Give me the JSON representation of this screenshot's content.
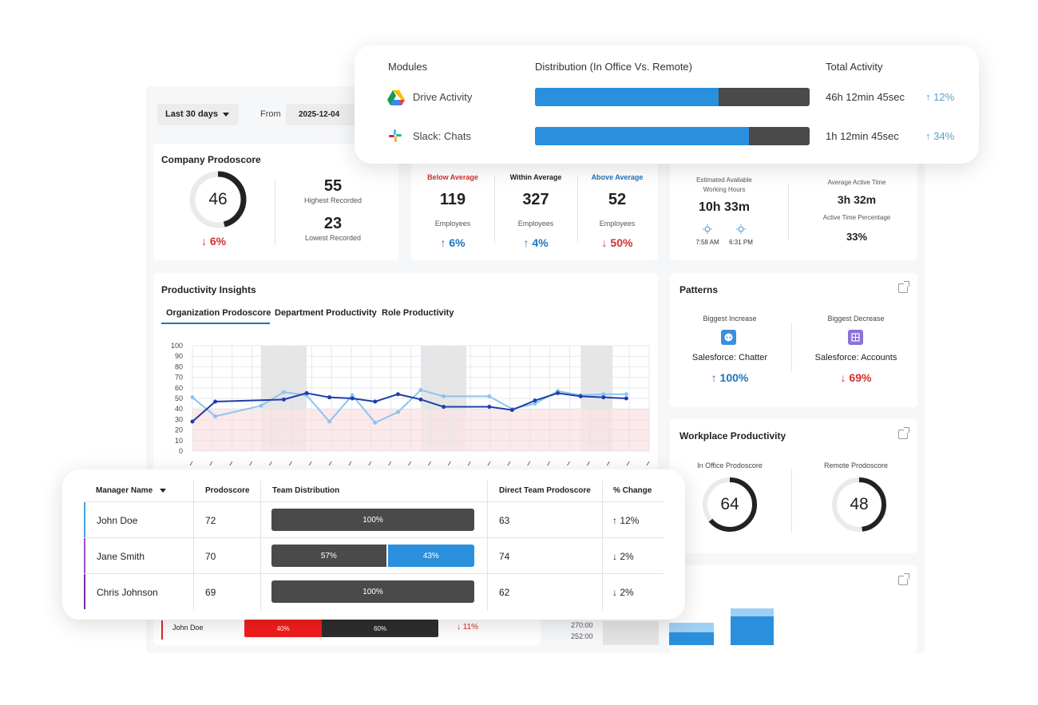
{
  "toolbar": {
    "range_label": "Last 30 days",
    "from_label": "From",
    "from_date": "2025-12-04"
  },
  "company": {
    "title": "Company Prodoscore",
    "score": "46",
    "score_fraction": 0.46,
    "change": "↓ 6%",
    "highest": "55",
    "highest_label": "Highest Recorded",
    "lowest": "23",
    "lowest_label": "Lowest Recorded"
  },
  "employees": {
    "groups": [
      {
        "label": "Below Average",
        "count": "119",
        "unit": "Employees",
        "change": "↑ 6%"
      },
      {
        "label": "Within Average",
        "count": "327",
        "unit": "Employees",
        "change": "↑ 4%"
      },
      {
        "label": "Above Average",
        "count": "52",
        "unit": "Employees",
        "change": "↓ 50%"
      }
    ]
  },
  "hours": {
    "available_label_1": "Estimated Available",
    "available_label_2": "Working Hours",
    "available_value": "10h 33m",
    "start": "7:58 AM",
    "end": "6:31 PM",
    "active_label": "Average Active Time",
    "active_value": "3h 32m",
    "pct_label": "Active Time Percentage",
    "pct_value": "33%"
  },
  "insights": {
    "title": "Productivity Insights",
    "tabs": [
      "Organization Prodoscore",
      "Department Productivity",
      "Role Productivity"
    ],
    "y_ticks": [
      "100",
      "90",
      "80",
      "70",
      "60",
      "50",
      "40",
      "30",
      "20",
      "10",
      "0"
    ]
  },
  "chart_data": {
    "type": "line",
    "ylim": [
      0,
      100
    ],
    "grid": true,
    "series": [
      {
        "color": "#1f3fa8",
        "x": [
          1,
          2,
          5,
          6,
          7,
          8,
          9,
          10,
          11,
          12,
          14,
          15,
          16,
          17,
          18,
          19,
          20
        ],
        "values": [
          28,
          47,
          49,
          55,
          51,
          50,
          47,
          54,
          49,
          42,
          42,
          39,
          48,
          55,
          52,
          51,
          50
        ]
      },
      {
        "color": "#8cc4f0",
        "x": [
          1,
          2,
          4,
          5,
          6,
          7,
          8,
          9,
          10,
          11,
          12,
          14,
          15,
          16,
          17,
          18,
          19,
          20
        ],
        "values": [
          51,
          33,
          43,
          56,
          53,
          28,
          53,
          27,
          37,
          58,
          52,
          52,
          40,
          45,
          57,
          53,
          54,
          54
        ]
      }
    ],
    "bands": [
      {
        "from": 0,
        "to": 40,
        "color": "#fbe4e4"
      }
    ]
  },
  "patterns": {
    "title": "Patterns",
    "increase_label": "Biggest Increase",
    "increase_name": "Salesforce: Chatter",
    "increase_change": "↑ 100%",
    "decrease_label": "Biggest Decrease",
    "decrease_name": "Salesforce: Accounts",
    "decrease_change": "↓ 69%"
  },
  "workplace": {
    "title": "Workplace Productivity",
    "office_label": "In Office Prodoscore",
    "office_value": "64",
    "office_fraction": 0.64,
    "remote_label": "Remote Prodoscore",
    "remote_value": "48",
    "remote_fraction": 0.48
  },
  "modules": {
    "headers": {
      "name": "Modules",
      "dist": "Distribution (In Office Vs. Remote)",
      "total": "Total Activity"
    },
    "rows": [
      {
        "name": "Drive Activity",
        "office_fraction": 0.67,
        "total": "46h 12min 45sec",
        "change": "↑ 12%"
      },
      {
        "name": "Slack: Chats",
        "office_fraction": 0.78,
        "total": "1h 12min 45sec",
        "change": "↑ 34%"
      }
    ]
  },
  "managers": {
    "headers": {
      "name": "Manager Name",
      "score": "Prodoscore",
      "dist": "Team Distribution",
      "direct": "Direct Team Prodoscore",
      "change": "% Change"
    },
    "rows": [
      {
        "name": "John Doe",
        "score": "72",
        "segments": [
          {
            "label": "100%",
            "color": "#4a4a4a"
          }
        ],
        "direct": "63",
        "change": "↑ 12%",
        "accent": "#4aa3df"
      },
      {
        "name": "Jane Smith",
        "score": "70",
        "segments": [
          {
            "label": "57%",
            "color": "#4a4a4a"
          },
          {
            "label": "43%",
            "color": "#2a8fdc"
          }
        ],
        "direct": "74",
        "change": "↓ 2%",
        "accent": "#a04ac4"
      },
      {
        "name": "Chris Johnson",
        "score": "69",
        "segments": [
          {
            "label": "100%",
            "color": "#4a4a4a"
          }
        ],
        "direct": "62",
        "change": "↓ 2%",
        "accent": "#7a2a9c"
      }
    ]
  },
  "below": {
    "name": "John Doe",
    "seg1": "40%",
    "seg2": "60%",
    "change": "↓ 11%",
    "y_ticks": [
      "270:00",
      "252:00"
    ]
  }
}
